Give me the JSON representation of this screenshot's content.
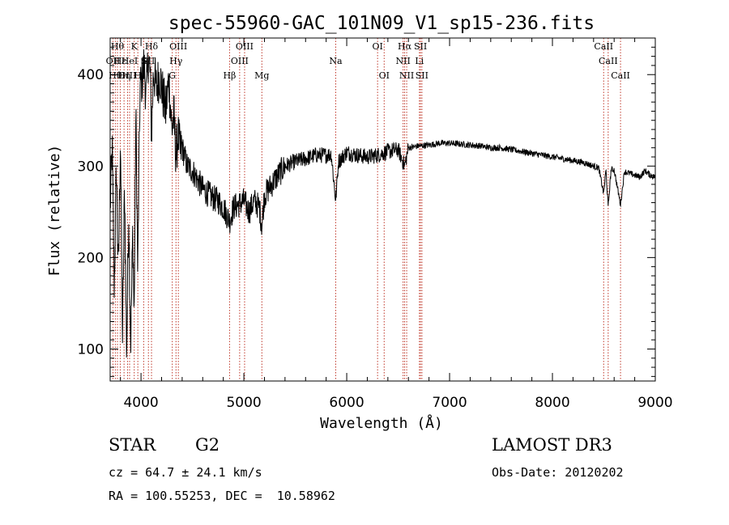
{
  "chart_data": {
    "type": "line",
    "title": "spec-55960-GAC_101N09_V1_sp15-236.fits",
    "xlabel": "Wavelength (Å)",
    "ylabel": "Flux (relative)",
    "xlim": [
      3700,
      9000
    ],
    "ylim": [
      65,
      440
    ],
    "x_ticks": [
      4000,
      5000,
      6000,
      7000,
      8000,
      9000
    ],
    "y_ticks": [
      100,
      200,
      300,
      400
    ],
    "grid": false,
    "series": [
      {
        "name": "flux",
        "x": [
          3700,
          3720,
          3740,
          3760,
          3780,
          3800,
          3820,
          3840,
          3860,
          3880,
          3900,
          3920,
          3933,
          3950,
          3968,
          3990,
          4010,
          4030,
          4050,
          4070,
          4090,
          4102,
          4120,
          4150,
          4180,
          4210,
          4240,
          4270,
          4300,
          4320,
          4340,
          4360,
          4380,
          4400,
          4450,
          4500,
          4550,
          4600,
          4650,
          4700,
          4750,
          4800,
          4861,
          4900,
          4950,
          5000,
          5050,
          5100,
          5150,
          5175,
          5200,
          5300,
          5400,
          5500,
          5600,
          5700,
          5800,
          5850,
          5893,
          5920,
          6000,
          6100,
          6200,
          6300,
          6400,
          6500,
          6563,
          6600,
          6700,
          6800,
          6900,
          7000,
          7100,
          7200,
          7300,
          7400,
          7500,
          7600,
          7700,
          7800,
          7900,
          8000,
          8100,
          8200,
          8300,
          8400,
          8450,
          8498,
          8520,
          8542,
          8570,
          8600,
          8662,
          8700,
          8750,
          8800,
          8850,
          8900,
          8950,
          9000
        ],
        "flux": [
          255,
          320,
          165,
          300,
          180,
          335,
          110,
          280,
          95,
          250,
          105,
          230,
          130,
          360,
          180,
          385,
          395,
          410,
          375,
          420,
          400,
          330,
          405,
          385,
          400,
          380,
          360,
          395,
          340,
          355,
          310,
          335,
          315,
          320,
          300,
          295,
          285,
          275,
          270,
          265,
          262,
          255,
          240,
          255,
          258,
          262,
          250,
          262,
          255,
          235,
          268,
          285,
          300,
          305,
          308,
          312,
          312,
          313,
          262,
          305,
          315,
          312,
          310,
          312,
          316,
          318,
          300,
          320,
          322,
          323,
          325,
          325,
          324,
          323,
          322,
          320,
          320,
          318,
          316,
          314,
          312,
          310,
          308,
          306,
          304,
          300,
          298,
          270,
          296,
          255,
          296,
          296,
          258,
          294,
          292,
          290,
          288,
          295,
          290,
          288
        ]
      }
    ],
    "lines": [
      {
        "wl": 3727,
        "label": "OII",
        "row": 1
      },
      {
        "wl": 3750,
        "label": "Hθ",
        "row": 2
      },
      {
        "wl": 3771,
        "label": "Hθ",
        "row": 0
      },
      {
        "wl": 3798,
        "label": "Hε",
        "row": 1
      },
      {
        "wl": 3835,
        "label": "Hη",
        "row": 2
      },
      {
        "wl": 3869,
        "label": "OIII",
        "row": 2
      },
      {
        "wl": 3889,
        "label": "HeI",
        "row": 1
      },
      {
        "wl": 3934,
        "label": "K",
        "row": 0
      },
      {
        "wl": 3969,
        "label": "H",
        "row": 2
      },
      {
        "wl": 4026,
        "label": "S",
        "row": 1
      },
      {
        "wl": 4072,
        "label": "SII",
        "row": 1
      },
      {
        "wl": 4102,
        "label": "Hδ",
        "row": 0
      },
      {
        "wl": 4304,
        "label": "G",
        "row": 2
      },
      {
        "wl": 4340,
        "label": "Hγ",
        "row": 1
      },
      {
        "wl": 4363,
        "label": "OIII",
        "row": 0
      },
      {
        "wl": 4861,
        "label": "Hβ",
        "row": 2
      },
      {
        "wl": 4959,
        "label": "OIII",
        "row": 1
      },
      {
        "wl": 5007,
        "label": "OIII",
        "row": 0
      },
      {
        "wl": 5175,
        "label": "Mg",
        "row": 2
      },
      {
        "wl": 5893,
        "label": "Na",
        "row": 1
      },
      {
        "wl": 6300,
        "label": "OI",
        "row": 0
      },
      {
        "wl": 6364,
        "label": "OI",
        "row": 2
      },
      {
        "wl": 6548,
        "label": "NII",
        "row": 1
      },
      {
        "wl": 6563,
        "label": "Hα",
        "row": 0
      },
      {
        "wl": 6583,
        "label": "NII",
        "row": 2
      },
      {
        "wl": 6707,
        "label": "Li",
        "row": 1
      },
      {
        "wl": 6717,
        "label": "SII",
        "row": 0
      },
      {
        "wl": 6731,
        "label": "SII",
        "row": 2
      },
      {
        "wl": 8498,
        "label": "CaII",
        "row": 0
      },
      {
        "wl": 8542,
        "label": "CaII",
        "row": 1
      },
      {
        "wl": 8662,
        "label": "CaII",
        "row": 2
      }
    ]
  },
  "info": {
    "object_type": "STAR",
    "subclass": "G2",
    "survey": "LAMOST DR3",
    "cz": "cz = 64.7 ± 24.1 km/s",
    "obs_date": "Obs-Date: 20120202",
    "coords": "RA = 100.55253, DEC =  10.58962"
  },
  "colors": {
    "line_marker": "#c0392b",
    "spectrum": "#000000"
  }
}
